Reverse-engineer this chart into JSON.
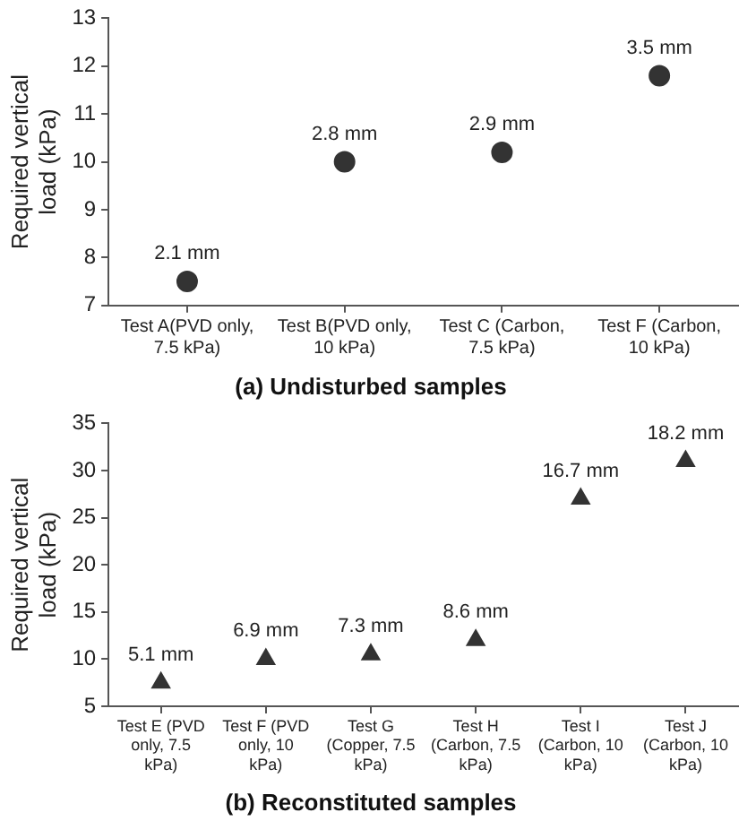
{
  "chart_data": [
    {
      "type": "scatter",
      "title": "(a) Undisturbed samples",
      "ylabel": "Required vertical load (kPa)",
      "categories": [
        "Test A(PVD only, 7.5 kPa)",
        "Test B(PVD only, 10 kPa)",
        "Test C (Carbon, 7.5 kPa)",
        "Test F (Carbon, 10 kPa)"
      ],
      "values": [
        7.5,
        10,
        10.2,
        11.8
      ],
      "color": "#333333",
      "marker": "circle",
      "ylim": [
        7,
        13
      ],
      "yticks": [
        7,
        8,
        9,
        10,
        11,
        12,
        13
      ],
      "grid": false,
      "legend": false,
      "annotations": [
        {
          "text": "2.1 mm",
          "x": "Test A(PVD only, 7.5 kPa)",
          "y": 7.5
        },
        {
          "text": "2.8 mm",
          "x": "Test B(PVD only, 10 kPa)",
          "y": 10
        },
        {
          "text": "2.9 mm",
          "x": "Test C (Carbon, 7.5 kPa)",
          "y": 10.2
        },
        {
          "text": "3.5 mm",
          "x": "Test F (Carbon, 10 kPa)",
          "y": 11.8
        }
      ]
    },
    {
      "type": "scatter",
      "title": "(b) Reconstituted samples",
      "ylabel": "Required vertical load (kPa)",
      "categories": [
        "Test E (PVD only, 7.5 kPa)",
        "Test F (PVD only, 10 kPa)",
        "Test G (Copper, 7.5 kPa)",
        "Test H (Carbon, 7.5 kPa)",
        "Test I (Carbon, 10 kPa)",
        "Test J (Carbon, 10 kPa)"
      ],
      "values": [
        7.5,
        10,
        10.5,
        12,
        27,
        31
      ],
      "color": "#333333",
      "marker": "triangle",
      "ylim": [
        5,
        35
      ],
      "yticks": [
        5,
        10,
        15,
        20,
        25,
        30,
        35
      ],
      "grid": false,
      "legend": false,
      "annotations": [
        {
          "text": "5.1 mm",
          "x": "Test E (PVD only, 7.5 kPa)",
          "y": 7.5
        },
        {
          "text": "6.9 mm",
          "x": "Test F (PVD only, 10 kPa)",
          "y": 10
        },
        {
          "text": "7.3 mm",
          "x": "Test G (Copper, 7.5 kPa)",
          "y": 10.5
        },
        {
          "text": "8.6 mm",
          "x": "Test H (Carbon, 7.5 kPa)",
          "y": 12
        },
        {
          "text": "16.7 mm",
          "x": "Test I (Carbon, 10 kPa)",
          "y": 27
        },
        {
          "text": "18.2 mm",
          "x": "Test J (Carbon, 10 kPa)",
          "y": 31
        }
      ]
    }
  ]
}
